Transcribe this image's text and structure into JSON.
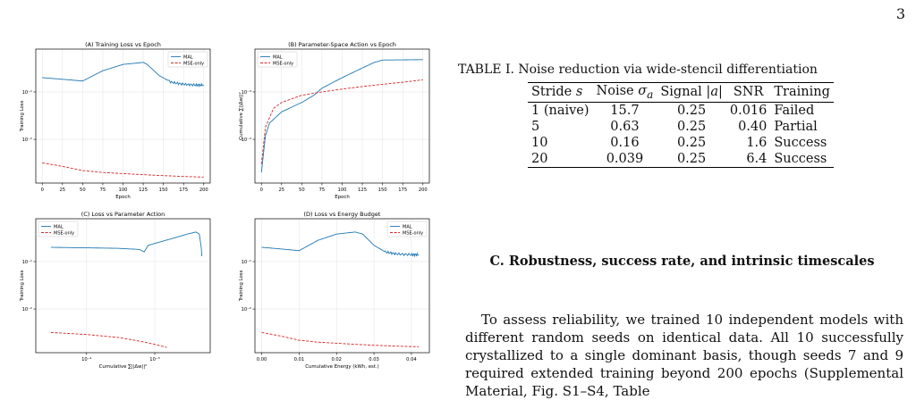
{
  "page_number": "3",
  "figure": {
    "legend_series": [
      "MAL",
      "MSE-only"
    ],
    "series_colors": {
      "MAL": "#1f77b4",
      "MSE-only": "#d62728"
    }
  },
  "chart_data": [
    {
      "type": "line",
      "title": "(A) Training Loss vs Epoch",
      "xlabel": "Epoch",
      "ylabel": "Training Loss",
      "xscale": "linear",
      "yscale": "log",
      "xlim": [
        -8,
        208
      ],
      "ylim": [
        0.0012,
        0.8
      ],
      "xticks": [
        0,
        25,
        50,
        75,
        100,
        125,
        150,
        175,
        200
      ],
      "yticks": [
        {
          "value": 0.1,
          "label": "10⁻¹"
        },
        {
          "value": 0.01,
          "label": "10⁻²"
        }
      ],
      "grid": true,
      "legend": "top-right",
      "series": [
        {
          "name": "MAL",
          "points": [
            [
              0,
              0.2
            ],
            [
              25,
              0.185
            ],
            [
              50,
              0.17
            ],
            [
              75,
              0.28
            ],
            [
              100,
              0.38
            ],
            [
              125,
              0.42
            ],
            [
              130,
              0.38
            ],
            [
              145,
              0.22
            ],
            [
              160,
              0.16
            ],
            [
              175,
              0.145
            ],
            [
              190,
              0.14
            ],
            [
              200,
              0.14
            ]
          ]
        },
        {
          "name": "MSE-only",
          "points": [
            [
              0,
              0.0032
            ],
            [
              25,
              0.0027
            ],
            [
              50,
              0.0022
            ],
            [
              75,
              0.002
            ],
            [
              100,
              0.0019
            ],
            [
              125,
              0.0018
            ],
            [
              150,
              0.00172
            ],
            [
              175,
              0.00165
            ],
            [
              200,
              0.0016
            ]
          ]
        }
      ]
    },
    {
      "type": "line",
      "title": "(B) Parameter-Space Action vs Epoch",
      "xlabel": "Epoch",
      "ylabel": "Cumulative ∑||Δw||²",
      "xscale": "linear",
      "yscale": "log",
      "xlim": [
        -8,
        208
      ],
      "ylim": [
        1.2e-05,
        0.008
      ],
      "xticks": [
        0,
        25,
        50,
        75,
        100,
        125,
        150,
        175,
        200
      ],
      "yticks": [
        {
          "value": 0.001,
          "label": "10⁻³"
        },
        {
          "value": 0.0001,
          "label": "10⁻⁴"
        }
      ],
      "grid": true,
      "legend": "top-left",
      "series": [
        {
          "name": "MAL",
          "points": [
            [
              0,
              2e-05
            ],
            [
              5,
              0.00012
            ],
            [
              10,
              0.00022
            ],
            [
              25,
              0.00038
            ],
            [
              50,
              0.0006
            ],
            [
              65,
              0.00085
            ],
            [
              75,
              0.0012
            ],
            [
              100,
              0.002
            ],
            [
              125,
              0.0032
            ],
            [
              140,
              0.0042
            ],
            [
              150,
              0.0047
            ],
            [
              200,
              0.0048
            ]
          ]
        },
        {
          "name": "MSE-only",
          "points": [
            [
              0,
              3e-05
            ],
            [
              5,
              0.00018
            ],
            [
              15,
              0.00045
            ],
            [
              25,
              0.0006
            ],
            [
              50,
              0.00085
            ],
            [
              75,
              0.001
            ],
            [
              100,
              0.00115
            ],
            [
              125,
              0.0013
            ],
            [
              150,
              0.00145
            ],
            [
              175,
              0.0016
            ],
            [
              200,
              0.0018
            ]
          ]
        }
      ]
    },
    {
      "type": "line",
      "title": "(C) Loss vs Parameter Action",
      "xlabel": "Cumulative ∑||Δw||²",
      "ylabel": "Training Loss",
      "xscale": "log",
      "yscale": "log",
      "xlim": [
        1.8e-05,
        0.0065
      ],
      "ylim": [
        0.0012,
        0.8
      ],
      "xticks": [
        {
          "value": 0.0001,
          "label": "10⁻⁴"
        },
        {
          "value": 0.001,
          "label": "10⁻³"
        }
      ],
      "yticks": [
        {
          "value": 0.1,
          "label": "10⁻¹"
        },
        {
          "value": 0.01,
          "label": "10⁻²"
        }
      ],
      "grid": true,
      "legend": "top-left",
      "series": [
        {
          "name": "MAL",
          "points": [
            [
              3e-05,
              0.2
            ],
            [
              0.0001,
              0.195
            ],
            [
              0.0003,
              0.19
            ],
            [
              0.0006,
              0.18
            ],
            [
              0.0007,
              0.16
            ],
            [
              0.0008,
              0.22
            ],
            [
              0.0012,
              0.26
            ],
            [
              0.002,
              0.32
            ],
            [
              0.003,
              0.38
            ],
            [
              0.004,
              0.42
            ],
            [
              0.0045,
              0.38
            ],
            [
              0.0048,
              0.2
            ],
            [
              0.0049,
              0.13
            ]
          ]
        },
        {
          "name": "MSE-only",
          "points": [
            [
              3e-05,
              0.0032
            ],
            [
              0.0001,
              0.0029
            ],
            [
              0.0003,
              0.0025
            ],
            [
              0.0006,
              0.0021
            ],
            [
              0.001,
              0.0018
            ],
            [
              0.0015,
              0.00155
            ]
          ]
        }
      ]
    },
    {
      "type": "line",
      "title": "(D) Loss vs Energy Budget",
      "xlabel": "Cumulative Energy (kWh, est.)",
      "ylabel": "Training Loss",
      "xscale": "linear",
      "yscale": "log",
      "xlim": [
        -0.0018,
        0.0448
      ],
      "ylim": [
        0.0012,
        0.8
      ],
      "xticks": [
        0.0,
        0.01,
        0.02,
        0.03,
        0.04
      ],
      "yticks": [
        {
          "value": 0.1,
          "label": "10⁻¹"
        },
        {
          "value": 0.01,
          "label": "10⁻²"
        }
      ],
      "grid": true,
      "legend": "top-right",
      "series": [
        {
          "name": "MAL",
          "points": [
            [
              0,
              0.2
            ],
            [
              0.005,
              0.185
            ],
            [
              0.01,
              0.17
            ],
            [
              0.015,
              0.28
            ],
            [
              0.02,
              0.38
            ],
            [
              0.025,
              0.42
            ],
            [
              0.027,
              0.38
            ],
            [
              0.03,
              0.22
            ],
            [
              0.033,
              0.16
            ],
            [
              0.036,
              0.145
            ],
            [
              0.04,
              0.14
            ],
            [
              0.042,
              0.14
            ]
          ]
        },
        {
          "name": "MSE-only",
          "points": [
            [
              0,
              0.0032
            ],
            [
              0.005,
              0.0027
            ],
            [
              0.01,
              0.0022
            ],
            [
              0.015,
              0.002
            ],
            [
              0.02,
              0.0019
            ],
            [
              0.025,
              0.0018
            ],
            [
              0.03,
              0.00172
            ],
            [
              0.036,
              0.00165
            ],
            [
              0.042,
              0.0016
            ]
          ]
        }
      ]
    }
  ],
  "table": {
    "caption": "TABLE I. Noise reduction via wide-stencil differentiation",
    "headers": [
      "Stride s",
      "Noise σa",
      "Signal |a|",
      "SNR",
      "Training"
    ],
    "rows": [
      [
        "1 (naive)",
        "15.7",
        "0.25",
        "0.016",
        "Failed"
      ],
      [
        "5",
        "0.63",
        "0.25",
        "0.40",
        "Partial"
      ],
      [
        "10",
        "0.16",
        "0.25",
        "1.6",
        "Success"
      ],
      [
        "20",
        "0.039",
        "0.25",
        "6.4",
        "Success"
      ]
    ]
  },
  "section": {
    "heading": "C.   Robustness, success rate, and intrinsic timescales"
  },
  "body": {
    "paragraph": "To assess reliability, we trained 10 independent models with different random seeds on identical data. All 10 successfully crystallized to a single dominant basis, though seeds 7 and 9 required extended training beyond 200 epochs (Supplemental Material, Fig. S1–S4, Table"
  }
}
